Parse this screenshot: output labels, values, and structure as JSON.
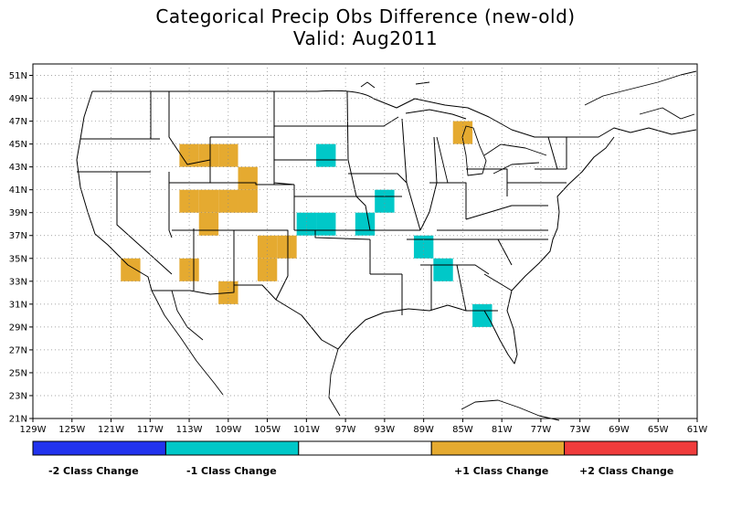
{
  "title": "Categorical Precip Obs Difference (new-old)",
  "subtitle": "Valid: Aug2011",
  "x_axis_labels": [
    "129W",
    "125W",
    "121W",
    "117W",
    "113W",
    "109W",
    "105W",
    "101W",
    "97W",
    "93W",
    "89W",
    "85W",
    "81W",
    "77W",
    "73W",
    "69W",
    "65W",
    "61W"
  ],
  "y_axis_labels": [
    "21N",
    "23N",
    "25N",
    "27N",
    "29N",
    "31N",
    "33N",
    "35N",
    "37N",
    "39N",
    "41N",
    "43N",
    "45N",
    "47N",
    "49N",
    "51N"
  ],
  "colors": {
    "minus2": "#2233ee",
    "minus1": "#00c8c8",
    "zero": "#ffffff",
    "plus1": "#e5aa30",
    "plus2": "#f03c3c"
  },
  "legend": [
    {
      "label": "-2 Class Change",
      "color": "#2233ee"
    },
    {
      "label": "-1 Class Change",
      "color": "#00c8c8"
    },
    {
      "label": "",
      "color": "#ffffff"
    },
    {
      "label": "+1 Class Change",
      "color": "#e5aa30"
    },
    {
      "label": "+2 Class Change",
      "color": "#f03c3c"
    }
  ],
  "grid": "dotted",
  "cells": [
    {
      "lon": -113,
      "lat": 44,
      "class": 1
    },
    {
      "lon": -111,
      "lat": 44,
      "class": 1
    },
    {
      "lon": -109,
      "lat": 44,
      "class": 1
    },
    {
      "lon": -107,
      "lat": 42,
      "class": 1
    },
    {
      "lon": -107,
      "lat": 40,
      "class": 1
    },
    {
      "lon": -113,
      "lat": 40,
      "class": 1
    },
    {
      "lon": -111,
      "lat": 40,
      "class": 1
    },
    {
      "lon": -111,
      "lat": 38,
      "class": 1
    },
    {
      "lon": -109,
      "lat": 40,
      "class": 1
    },
    {
      "lon": -103,
      "lat": 36,
      "class": 1
    },
    {
      "lon": -105,
      "lat": 36,
      "class": 1
    },
    {
      "lon": -105,
      "lat": 34,
      "class": 1
    },
    {
      "lon": -119,
      "lat": 34,
      "class": 1
    },
    {
      "lon": -113,
      "lat": 34,
      "class": 1
    },
    {
      "lon": -109,
      "lat": 32,
      "class": 1
    },
    {
      "lon": -85,
      "lat": 46,
      "class": 1
    },
    {
      "lon": -99,
      "lat": 44,
      "class": -1
    },
    {
      "lon": -93,
      "lat": 40,
      "class": -1
    },
    {
      "lon": -101,
      "lat": 38,
      "class": -1
    },
    {
      "lon": -99,
      "lat": 38,
      "class": -1
    },
    {
      "lon": -95,
      "lat": 38,
      "class": -1
    },
    {
      "lon": -89,
      "lat": 36,
      "class": -1
    },
    {
      "lon": -87,
      "lat": 34,
      "class": -1
    },
    {
      "lon": -83,
      "lat": 30,
      "class": -1
    }
  ]
}
